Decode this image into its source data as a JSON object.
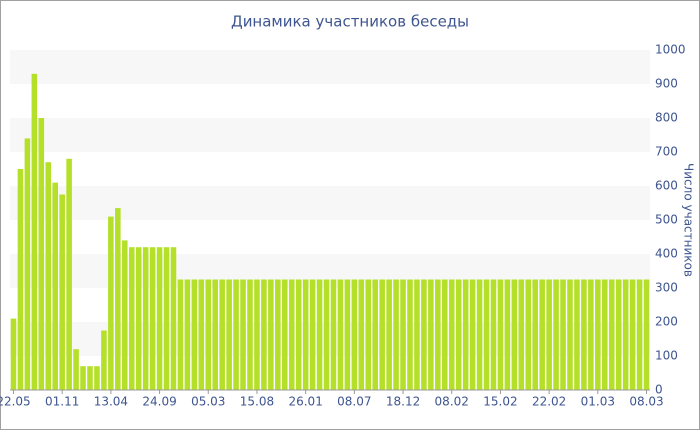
{
  "chart_data": {
    "type": "bar",
    "title": "Динамика участников беседы",
    "y_label": "Число участников",
    "categories": [
      "22.05",
      null,
      null,
      null,
      null,
      null,
      null,
      "01.11",
      null,
      null,
      null,
      null,
      null,
      null,
      "13.04",
      null,
      null,
      null,
      null,
      null,
      null,
      "24.09",
      null,
      null,
      null,
      null,
      null,
      null,
      "05.03",
      null,
      null,
      null,
      null,
      null,
      null,
      "15.08",
      null,
      null,
      null,
      null,
      null,
      null,
      "26.01",
      null,
      null,
      null,
      null,
      null,
      null,
      "08.07",
      null,
      null,
      null,
      null,
      null,
      null,
      "18.12",
      null,
      null,
      null,
      null,
      null,
      null,
      "08.02",
      null,
      null,
      null,
      null,
      null,
      null,
      "15.02",
      null,
      null,
      null,
      null,
      null,
      null,
      "22.02",
      null,
      null,
      null,
      null,
      null,
      null,
      "01.03",
      null,
      null,
      null,
      null,
      null,
      null,
      "08.03"
    ],
    "values": [
      210,
      650,
      740,
      930,
      800,
      670,
      610,
      575,
      680,
      120,
      70,
      70,
      70,
      175,
      510,
      535,
      440,
      420,
      420,
      420,
      420,
      420,
      420,
      420,
      325,
      325,
      325,
      325,
      325,
      325,
      325,
      325,
      325,
      325,
      325,
      325,
      325,
      325,
      325,
      325,
      325,
      325,
      325,
      325,
      325,
      325,
      325,
      325,
      325,
      325,
      325,
      325,
      325,
      325,
      325,
      325,
      325,
      325,
      325,
      325,
      325,
      325,
      325,
      325,
      325,
      325,
      325,
      325,
      325,
      325,
      325,
      325,
      325,
      325,
      325,
      325,
      325,
      325,
      325,
      325,
      325,
      325,
      325,
      325,
      325,
      325,
      325,
      325,
      325,
      325,
      325,
      325
    ],
    "color": "#b5e02a",
    "ylim": [
      0,
      1000
    ],
    "yticks": [
      0,
      100,
      200,
      300,
      400,
      500,
      600,
      700,
      800,
      900,
      1000
    ],
    "grid": true,
    "y_axis_side": "right"
  }
}
